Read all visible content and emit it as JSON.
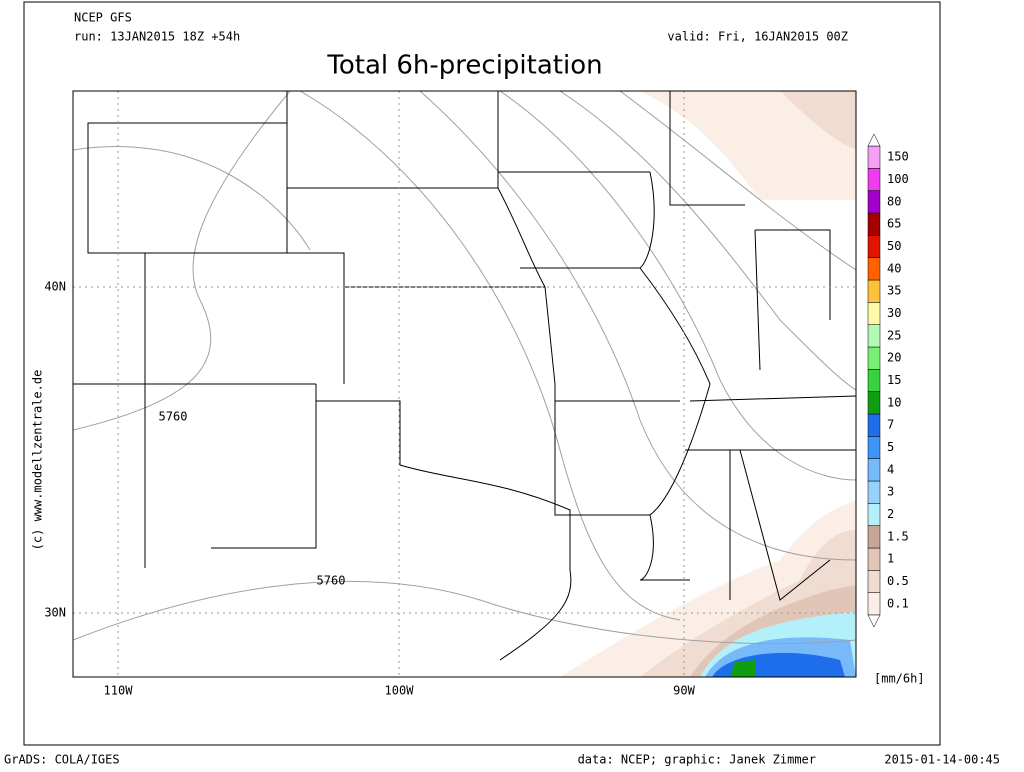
{
  "header": {
    "model": "NCEP GFS",
    "run": "run: 13JAN2015 18Z +54h",
    "valid": "valid: Fri, 16JAN2015 00Z",
    "title": "Total 6h-precipitation"
  },
  "map": {
    "lon_labels": [
      "110W",
      "100W",
      "90W"
    ],
    "lat_labels": [
      "40N",
      "30N"
    ],
    "contour_labels": [
      "5760",
      "5760"
    ]
  },
  "colorbar": {
    "unit": "[mm/6h]",
    "levels": [
      {
        "label": "0.1",
        "color": "#fbeee6"
      },
      {
        "label": "0.5",
        "color": "#f0dcd0"
      },
      {
        "label": "1",
        "color": "#e1c6b8"
      },
      {
        "label": "1.5",
        "color": "#c8a496"
      },
      {
        "label": "2",
        "color": "#b4f0fa"
      },
      {
        "label": "3",
        "color": "#96d2fa"
      },
      {
        "label": "4",
        "color": "#78b9fa"
      },
      {
        "label": "5",
        "color": "#3c96f5"
      },
      {
        "label": "7",
        "color": "#1e6eeb"
      },
      {
        "label": "10",
        "color": "#109e10"
      },
      {
        "label": "15",
        "color": "#37d23c"
      },
      {
        "label": "20",
        "color": "#78f073"
      },
      {
        "label": "25",
        "color": "#b4fab4"
      },
      {
        "label": "30",
        "color": "#fffaaa"
      },
      {
        "label": "35",
        "color": "#ffc03c"
      },
      {
        "label": "40",
        "color": "#ff6000"
      },
      {
        "label": "50",
        "color": "#e11400"
      },
      {
        "label": "65",
        "color": "#a50000"
      },
      {
        "label": "80",
        "color": "#a000c8"
      },
      {
        "label": "100",
        "color": "#f03cf0"
      },
      {
        "label": "150",
        "color": "#f5a0f5"
      }
    ]
  },
  "footer": {
    "left": "GrADS: COLA/IGES",
    "credit": "data: NCEP; graphic: Janek Zimmer",
    "timestamp": "2015-01-14-00:45"
  },
  "watermark": "(c) www.modellzentrale.de"
}
